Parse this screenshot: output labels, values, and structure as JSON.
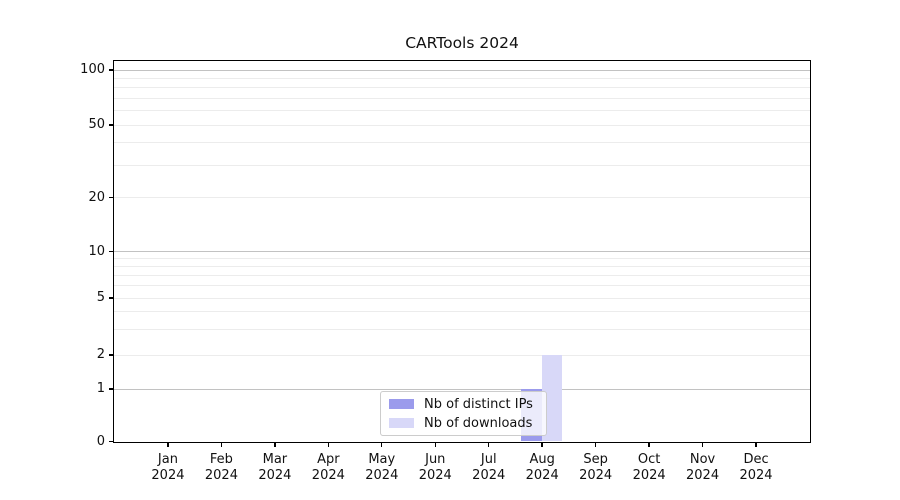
{
  "chart_data": {
    "type": "bar",
    "title": "CARTools 2024",
    "x_months": [
      "Jan",
      "Feb",
      "Mar",
      "Apr",
      "May",
      "Jun",
      "Jul",
      "Aug",
      "Sep",
      "Oct",
      "Nov",
      "Dec"
    ],
    "x_year": "2024",
    "categories": [
      "Jan 2024",
      "Feb 2024",
      "Mar 2024",
      "Apr 2024",
      "May 2024",
      "Jun 2024",
      "Jul 2024",
      "Aug 2024",
      "Sep 2024",
      "Oct 2024",
      "Nov 2024",
      "Dec 2024"
    ],
    "series": [
      {
        "name": "Nb of distinct IPs",
        "color": "#9b9bec",
        "values": [
          0,
          0,
          0,
          0,
          0,
          0,
          0,
          1,
          0,
          0,
          0,
          0
        ]
      },
      {
        "name": "Nb of downloads",
        "color": "#d8d8f8",
        "values": [
          0,
          0,
          0,
          0,
          0,
          0,
          0,
          2,
          0,
          0,
          0,
          0
        ]
      }
    ],
    "xlabel": "",
    "ylabel": "",
    "y_ticks": [
      0,
      1,
      2,
      5,
      10,
      20,
      50,
      100
    ],
    "y_major_grid": [
      1,
      10,
      100
    ],
    "y_minor_grid": [
      2,
      3,
      4,
      5,
      6,
      7,
      8,
      9,
      20,
      30,
      40,
      50,
      60,
      70,
      80,
      90
    ],
    "y_scale": "symlog",
    "ylim": [
      0,
      115
    ],
    "grid": "on",
    "legend_position": "lower center"
  }
}
